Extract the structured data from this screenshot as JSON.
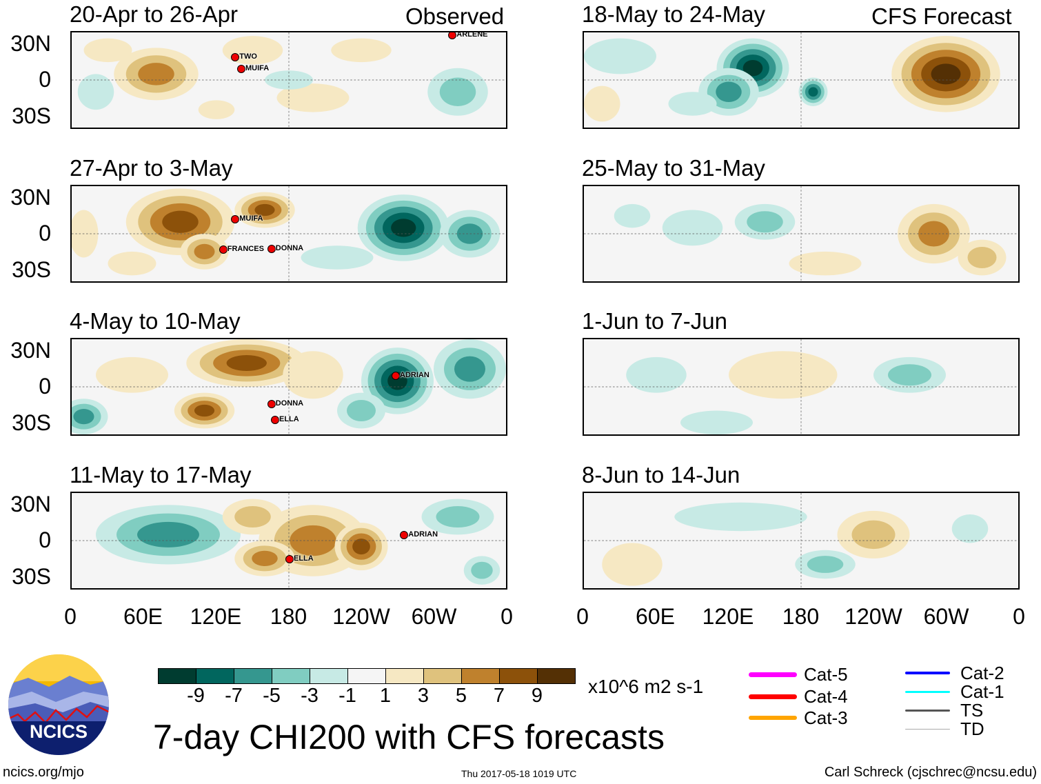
{
  "header": {
    "observed_label": "Observed",
    "forecast_label": "CFS Forecast"
  },
  "lat_labels": [
    "30N",
    "0",
    "30S"
  ],
  "lon_labels": [
    "0",
    "60E",
    "120E",
    "180",
    "120W",
    "60W",
    "0"
  ],
  "panels": [
    {
      "title": "20-Apr to 26-Apr",
      "storms": [
        "TWO",
        "MUIFA",
        "ARLENE"
      ]
    },
    {
      "title": "27-Apr to 3-May",
      "storms": [
        "MUIFA",
        "FRANCES",
        "DONNA"
      ]
    },
    {
      "title": "4-May to 10-May",
      "storms": [
        "ADRIAN",
        "DONNA",
        "ELLA"
      ]
    },
    {
      "title": "11-May to 17-May",
      "storms": [
        "ELLA",
        "ADRIAN"
      ]
    },
    {
      "title": "18-May to 24-May",
      "storms": []
    },
    {
      "title": "25-May to 31-May",
      "storms": []
    },
    {
      "title": "1-Jun to 7-Jun",
      "storms": []
    },
    {
      "title": "8-Jun to 14-Jun",
      "storms": []
    }
  ],
  "colorbar": {
    "colors": [
      "#003c30",
      "#01665e",
      "#35978f",
      "#80cdc1",
      "#c7eae5",
      "#f5f5f5",
      "#f6e8c3",
      "#dfc27d",
      "#bf812d",
      "#8c510a",
      "#543005"
    ],
    "labels": [
      "-9",
      "-7",
      "-5",
      "-3",
      "-1",
      "1",
      "3",
      "5",
      "7",
      "9"
    ],
    "units": "x10^6 m2 s-1"
  },
  "legend": [
    {
      "label": "Cat-5",
      "color": "#ff00ff"
    },
    {
      "label": "Cat-4",
      "color": "#ff0000"
    },
    {
      "label": "Cat-3",
      "color": "#ffa500"
    },
    {
      "label": "Cat-2",
      "color": "#0000ff"
    },
    {
      "label": "Cat-1",
      "color": "#00ffff"
    },
    {
      "label": "TS",
      "color": "#555555"
    },
    {
      "label": "TD",
      "color": "#aaaaaa"
    }
  ],
  "footer": {
    "main_title": "7-day CHI200 with CFS forecasts",
    "url": "ncics.org/mjo",
    "timestamp": "Thu 2017-05-18 1019 UTC",
    "credit": "Carl Schreck (cjschrec@ncsu.edu)",
    "logo_text": "NCICS"
  }
}
